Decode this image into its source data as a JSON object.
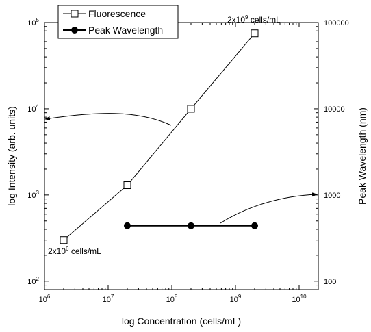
{
  "chart_data": {
    "type": "line",
    "xlabel": "log Concentration (cells/mL)",
    "ylabel": "log Intensity (arb. units)",
    "y2label": "Peak Wavelength (nm)",
    "xscale": "log",
    "yscale": "log",
    "y2scale": "log",
    "xlim": [
      1000000,
      20000000000
    ],
    "ylim": [
      80,
      100000
    ],
    "y2lim": [
      80,
      100000
    ],
    "x_ticks": [
      {
        "value": 1000000,
        "base": "10",
        "exp": "6"
      },
      {
        "value": 10000000,
        "base": "10",
        "exp": "7"
      },
      {
        "value": 100000000,
        "base": "10",
        "exp": "8"
      },
      {
        "value": 1000000000,
        "base": "10",
        "exp": "9"
      },
      {
        "value": 10000000000,
        "base": "10",
        "exp": "10"
      }
    ],
    "y_ticks": [
      {
        "value": 100,
        "base": "10",
        "exp": "2"
      },
      {
        "value": 1000,
        "base": "10",
        "exp": "3"
      },
      {
        "value": 10000,
        "base": "10",
        "exp": "4"
      },
      {
        "value": 100000,
        "base": "10",
        "exp": "5"
      }
    ],
    "y2_ticks": [
      {
        "value": 100,
        "label": "100"
      },
      {
        "value": 1000,
        "label": "1000"
      },
      {
        "value": 10000,
        "label": "10000"
      },
      {
        "value": 100000,
        "label": "100000"
      }
    ],
    "series": [
      {
        "name": "Fluorescence",
        "axis": "left",
        "marker": "open-square",
        "color": "#000000",
        "points": [
          {
            "x": 2000000,
            "y": 300
          },
          {
            "x": 20000000,
            "y": 1300
          },
          {
            "x": 200000000,
            "y": 10000
          },
          {
            "x": 2000000000,
            "y": 75000
          }
        ]
      },
      {
        "name": "Peak Wavelength",
        "axis": "right",
        "marker": "filled-circle",
        "color": "#000000",
        "points": [
          {
            "x": 20000000,
            "y": 440
          },
          {
            "x": 200000000,
            "y": 440
          },
          {
            "x": 2000000000,
            "y": 440
          }
        ]
      }
    ],
    "annotations": [
      {
        "id": "high",
        "base": "2x10",
        "exp": "9",
        "suffix": " cells/mL"
      },
      {
        "id": "low",
        "base": "2x10",
        "exp": "6",
        "suffix": " cells/mL"
      }
    ],
    "legend_position": "top-left",
    "grid": false
  }
}
